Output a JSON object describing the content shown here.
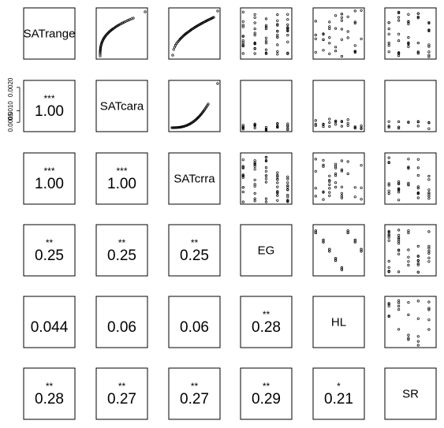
{
  "chart_data": {
    "type": "scatter-matrix",
    "variables": [
      "SATrange",
      "SATcara",
      "SATcrra",
      "EG",
      "HL",
      "SR"
    ],
    "correlations": [
      {
        "row": 1,
        "col": 0,
        "value": "1.00",
        "stars": "***"
      },
      {
        "row": 2,
        "col": 0,
        "value": "1.00",
        "stars": "***"
      },
      {
        "row": 2,
        "col": 1,
        "value": "1.00",
        "stars": "***"
      },
      {
        "row": 3,
        "col": 0,
        "value": "0.25",
        "stars": "**"
      },
      {
        "row": 3,
        "col": 1,
        "value": "0.25",
        "stars": "**"
      },
      {
        "row": 3,
        "col": 2,
        "value": "0.25",
        "stars": "**"
      },
      {
        "row": 4,
        "col": 0,
        "value": "0.044",
        "stars": ""
      },
      {
        "row": 4,
        "col": 1,
        "value": "0.06",
        "stars": ""
      },
      {
        "row": 4,
        "col": 2,
        "value": "0.06",
        "stars": ""
      },
      {
        "row": 4,
        "col": 3,
        "value": "0.28",
        "stars": "**"
      },
      {
        "row": 5,
        "col": 0,
        "value": "0.28",
        "stars": "**"
      },
      {
        "row": 5,
        "col": 1,
        "value": "0.27",
        "stars": "**"
      },
      {
        "row": 5,
        "col": 2,
        "value": "0.27",
        "stars": "**"
      },
      {
        "row": 5,
        "col": 3,
        "value": "0.29",
        "stars": "**"
      },
      {
        "row": 5,
        "col": 4,
        "value": "0.21",
        "stars": "*"
      }
    ],
    "y_axis": {
      "variable": "SATcara",
      "ticks": [
        "0.0005",
        "0.0010",
        "0.0020"
      ],
      "tick_values": [
        0.0005,
        0.001,
        0.002
      ],
      "range": [
        0.0001,
        0.0023
      ]
    },
    "grid": false,
    "point_color": "#000000"
  }
}
